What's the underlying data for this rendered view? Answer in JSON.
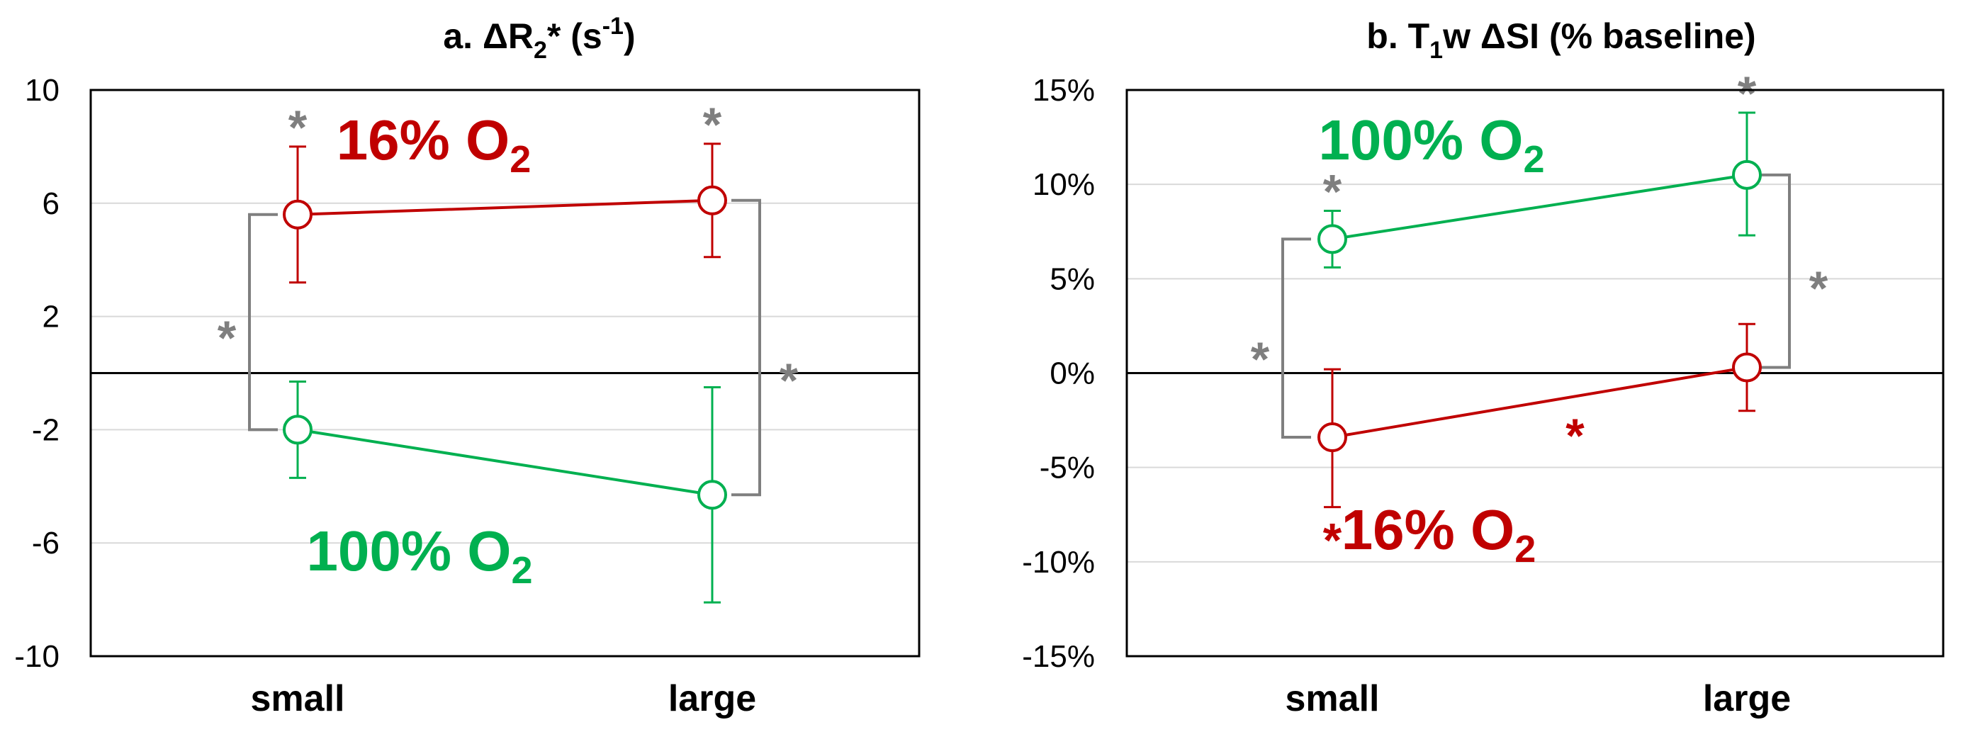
{
  "chart_data": [
    {
      "type": "line",
      "title": {
        "prefix": "a. ΔR",
        "sub": "2",
        "mid": "* (s",
        "sup": "-1",
        "suffix": ")"
      },
      "categories": [
        "small",
        "large"
      ],
      "ylim": [
        -10,
        10
      ],
      "yticks": [
        10,
        6,
        2,
        -2,
        -6,
        -10
      ],
      "ytick_labels": [
        "10",
        "6",
        "2",
        "-2",
        "-6",
        "-10"
      ],
      "series": [
        {
          "name": "16% O2",
          "label_main": "16% O",
          "label_sub": "2",
          "color": "#c00000",
          "values": [
            5.6,
            6.1
          ],
          "err_low": [
            3.2,
            4.1
          ],
          "err_high": [
            8.0,
            8.1
          ]
        },
        {
          "name": "100% O2",
          "label_main": "100% O",
          "label_sub": "2",
          "color": "#00b050",
          "values": [
            -2.0,
            -4.3
          ],
          "err_low": [
            -3.7,
            -8.1
          ],
          "err_high": [
            -0.3,
            -0.5
          ]
        }
      ],
      "annotations": {
        "point_stars": [
          {
            "text": "*",
            "series": 0,
            "index": 0,
            "color": "#7f7f7f"
          },
          {
            "text": "*",
            "series": 0,
            "index": 1,
            "color": "#7f7f7f"
          }
        ],
        "brackets": [
          {
            "text": "*",
            "index": 0,
            "side": "left",
            "color": "#7f7f7f"
          },
          {
            "text": "*",
            "index": 1,
            "side": "right",
            "color": "#7f7f7f"
          }
        ],
        "between": []
      }
    },
    {
      "type": "line",
      "title": {
        "prefix": "b. T",
        "sub": "1",
        "mid": "w ΔSI (% baseline)",
        "sup": "",
        "suffix": ""
      },
      "categories": [
        "small",
        "large"
      ],
      "ylim": [
        -15,
        15
      ],
      "yticks": [
        15,
        10,
        5,
        0,
        -5,
        -10,
        -15
      ],
      "ytick_labels": [
        "15%",
        "10%",
        "5%",
        "0%",
        "-5%",
        "-10%",
        "-15%"
      ],
      "series": [
        {
          "name": "100% O2",
          "label_main": "100% O",
          "label_sub": "2",
          "color": "#00b050",
          "values": [
            7.1,
            10.5
          ],
          "err_low": [
            5.6,
            7.3
          ],
          "err_high": [
            8.6,
            13.8
          ]
        },
        {
          "name": "16% O2",
          "label_main": "16% O",
          "label_sub": "2",
          "color": "#c00000",
          "values": [
            -3.4,
            0.3
          ],
          "err_low": [
            -7.1,
            -2.0
          ],
          "err_high": [
            0.2,
            2.6
          ]
        }
      ],
      "annotations": {
        "point_stars": [
          {
            "text": "*",
            "series": 0,
            "index": 0,
            "color": "#7f7f7f"
          },
          {
            "text": "*",
            "series": 0,
            "index": 1,
            "color": "#7f7f7f"
          },
          {
            "text": "*",
            "series": 1,
            "index": 0,
            "color": "#c00000"
          }
        ],
        "brackets": [
          {
            "text": "*",
            "index": 0,
            "side": "left",
            "color": "#7f7f7f"
          },
          {
            "text": "*",
            "index": 1,
            "side": "right",
            "color": "#7f7f7f"
          }
        ],
        "between": [
          {
            "text": "*",
            "series": 1,
            "color": "#c00000"
          }
        ]
      }
    }
  ]
}
